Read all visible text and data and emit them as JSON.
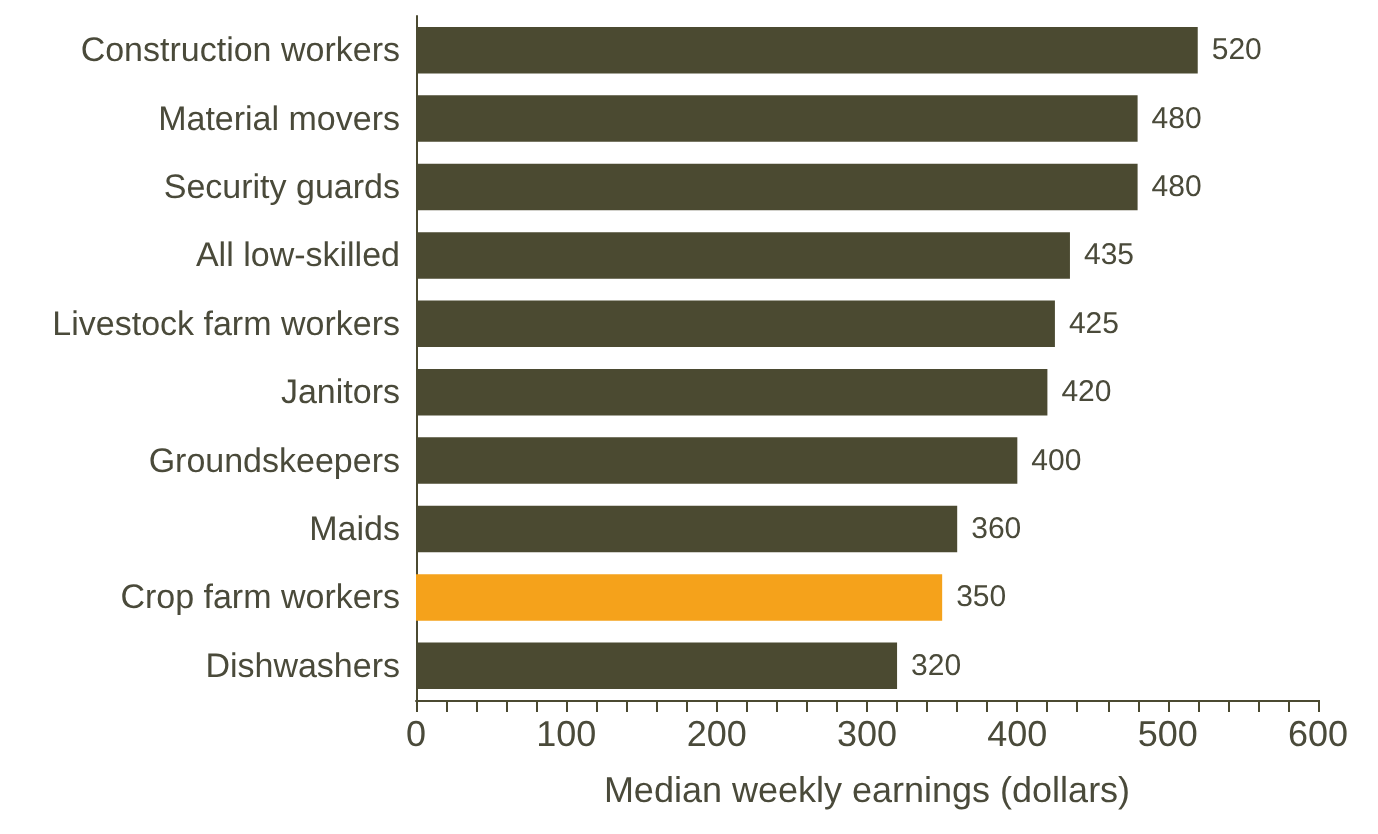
{
  "chart_data": {
    "type": "bar",
    "orientation": "horizontal",
    "xlabel": "Median weekly earnings (dollars)",
    "categories": [
      "Construction workers",
      "Material movers",
      "Security guards",
      "All low-skilled",
      "Livestock farm workers",
      "Janitors",
      "Groundskeepers",
      "Maids",
      "Crop farm workers",
      "Dishwashers"
    ],
    "values": [
      520,
      480,
      480,
      435,
      425,
      420,
      400,
      360,
      350,
      320
    ],
    "colors": [
      "#4b4a31",
      "#4b4a31",
      "#4b4a31",
      "#4b4a31",
      "#4b4a31",
      "#4b4a31",
      "#4b4a31",
      "#4b4a31",
      "#f5a21b",
      "#4b4a31"
    ],
    "data_labels": true,
    "xlim": [
      0,
      600
    ],
    "xticks": [
      0,
      {
        "value": 20,
        "label": null
      },
      {
        "value": 40,
        "label": null
      },
      {
        "value": 60,
        "label": null
      },
      {
        "value": 80,
        "label": null
      },
      100,
      {
        "value": 120,
        "label": null
      },
      {
        "value": 140,
        "label": null
      },
      {
        "value": 160,
        "label": null
      },
      {
        "value": 180,
        "label": null
      },
      200,
      {
        "value": 220,
        "label": null
      },
      {
        "value": 240,
        "label": null
      },
      {
        "value": 260,
        "label": null
      },
      {
        "value": 280,
        "label": null
      },
      300,
      {
        "value": 320,
        "label": null
      },
      {
        "value": 340,
        "label": null
      },
      {
        "value": 360,
        "label": null
      },
      {
        "value": 380,
        "label": null
      },
      400,
      {
        "value": 420,
        "label": null
      },
      {
        "value": 440,
        "label": null
      },
      {
        "value": 460,
        "label": null
      },
      {
        "value": 480,
        "label": null
      },
      500,
      {
        "value": 520,
        "label": null
      },
      {
        "value": 540,
        "label": null
      },
      {
        "value": 560,
        "label": null
      },
      {
        "value": 580,
        "label": null
      },
      600
    ]
  }
}
